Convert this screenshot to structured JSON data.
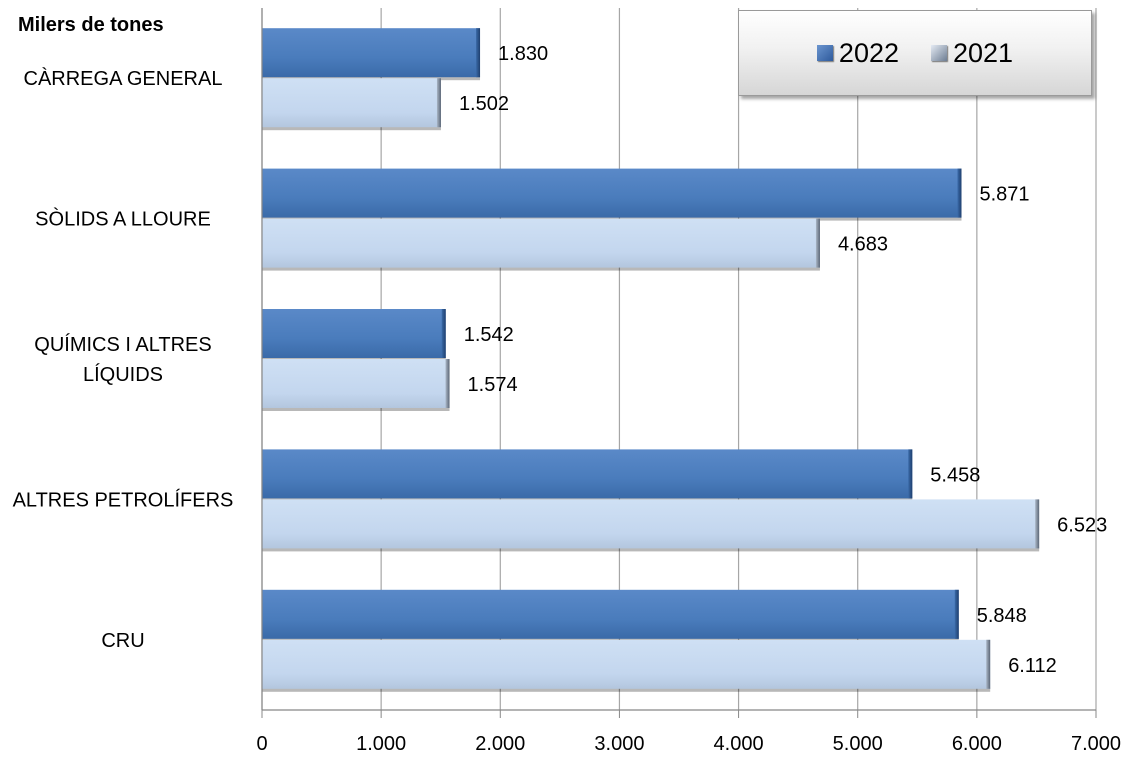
{
  "chart_data": {
    "type": "bar",
    "orientation": "horizontal",
    "unit_label": "Milers de tones",
    "categories": [
      "CÀRREGA GENERAL",
      "SÒLIDS A LLOURE",
      "QUÍMICS I ALTRES LÍQUIDS",
      "ALTRES PETROLÍFERS",
      "CRU"
    ],
    "category_lines": [
      [
        "CÀRREGA GENERAL"
      ],
      [
        "SÒLIDS A LLOURE"
      ],
      [
        "QUÍMICS I ALTRES",
        "LÍQUIDS"
      ],
      [
        "ALTRES PETROLÍFERS"
      ],
      [
        "CRU"
      ]
    ],
    "series": [
      {
        "name": "2022",
        "color": "#4f81bd",
        "values": [
          1830,
          5871,
          1542,
          5458,
          5848
        ],
        "labels": [
          "1.830",
          "5.871",
          "1.542",
          "5.458",
          "5.848"
        ]
      },
      {
        "name": "2021",
        "color": "#c6d9f1",
        "values": [
          1502,
          4683,
          1574,
          6523,
          6112
        ],
        "labels": [
          "1.502",
          "4.683",
          "1.574",
          "6.523",
          "6.112"
        ]
      }
    ],
    "xlim": [
      0,
      7000
    ],
    "xticks": [
      0,
      1000,
      2000,
      3000,
      4000,
      5000,
      6000,
      7000
    ],
    "xtick_labels": [
      "0",
      "1.000",
      "2.000",
      "3.000",
      "4.000",
      "5.000",
      "6.000",
      "7.000"
    ],
    "grid": "vertical",
    "legend_position": "top-right"
  }
}
